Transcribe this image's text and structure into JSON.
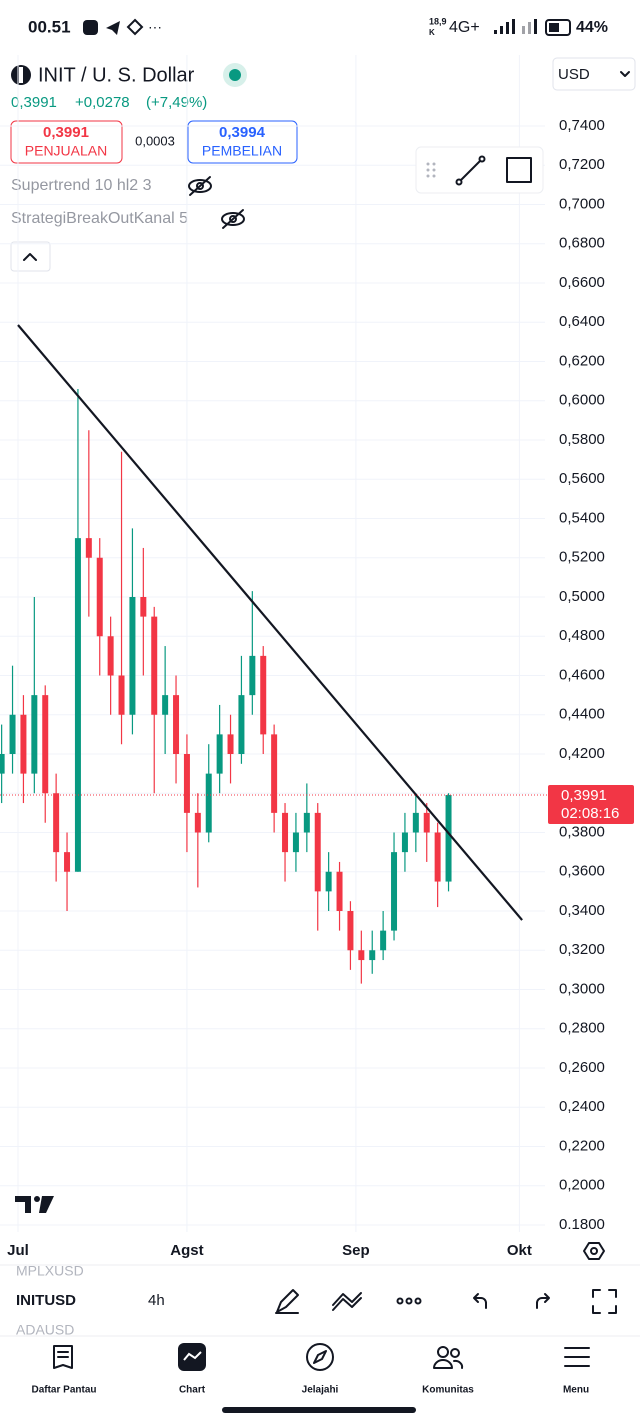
{
  "status_bar": {
    "time": "00.51",
    "speed": "18,9",
    "speed_unit": "K",
    "network": "4G+",
    "battery": "44%"
  },
  "header": {
    "symbol_title": "INIT / U. S. Dollar",
    "currency": "USD",
    "price": "0,3991",
    "change": "+0,0278",
    "change_pct": "(+7,49%)",
    "sell_price": "0,3991",
    "sell_label": "PENJUALAN",
    "spread": "0,0003",
    "buy_price": "0,3994",
    "buy_label": "PEMBELIAN",
    "indicators": [
      "Supertrend 10 hl2 3",
      "StrategiBreakOutKanal 5"
    ]
  },
  "chart_data": {
    "type": "candlestick",
    "x": [
      -3,
      -1,
      1,
      3,
      5,
      7,
      9,
      11,
      13,
      15,
      17,
      19,
      21,
      23,
      25,
      27,
      29,
      31,
      33,
      35,
      37,
      39,
      41,
      43,
      45,
      47,
      49,
      51,
      53,
      55,
      57,
      59,
      61,
      63,
      65,
      67,
      69,
      71,
      73,
      75,
      77,
      79
    ],
    "open": [
      0.41,
      0.42,
      0.44,
      0.41,
      0.45,
      0.4,
      0.37,
      0.36,
      0.53,
      0.52,
      0.48,
      0.46,
      0.44,
      0.5,
      0.49,
      0.44,
      0.45,
      0.42,
      0.39,
      0.38,
      0.41,
      0.43,
      0.42,
      0.45,
      0.47,
      0.43,
      0.39,
      0.37,
      0.38,
      0.39,
      0.35,
      0.36,
      0.34,
      0.32,
      0.315,
      0.32,
      0.33,
      0.37,
      0.38,
      0.39,
      0.38,
      0.355
    ],
    "high": [
      0.435,
      0.465,
      0.45,
      0.5,
      0.455,
      0.41,
      0.38,
      0.606,
      0.585,
      0.53,
      0.49,
      0.574,
      0.535,
      0.525,
      0.495,
      0.475,
      0.46,
      0.43,
      0.4,
      0.425,
      0.445,
      0.44,
      0.47,
      0.503,
      0.475,
      0.435,
      0.395,
      0.39,
      0.405,
      0.395,
      0.37,
      0.365,
      0.345,
      0.33,
      0.33,
      0.34,
      0.38,
      0.39,
      0.4,
      0.395,
      0.385,
      0.4
    ],
    "low": [
      0.395,
      0.41,
      0.395,
      0.4,
      0.385,
      0.355,
      0.34,
      0.36,
      0.49,
      0.46,
      0.44,
      0.425,
      0.43,
      0.46,
      0.4,
      0.42,
      0.405,
      0.37,
      0.352,
      0.375,
      0.4,
      0.405,
      0.415,
      0.44,
      0.42,
      0.38,
      0.355,
      0.36,
      0.37,
      0.33,
      0.34,
      0.33,
      0.31,
      0.303,
      0.308,
      0.315,
      0.325,
      0.36,
      0.37,
      0.365,
      0.342,
      0.35
    ],
    "close": [
      0.42,
      0.44,
      0.41,
      0.45,
      0.4,
      0.37,
      0.36,
      0.53,
      0.52,
      0.48,
      0.46,
      0.44,
      0.5,
      0.49,
      0.44,
      0.45,
      0.42,
      0.39,
      0.38,
      0.41,
      0.43,
      0.42,
      0.45,
      0.47,
      0.43,
      0.39,
      0.37,
      0.38,
      0.39,
      0.35,
      0.36,
      0.34,
      0.32,
      0.315,
      0.32,
      0.33,
      0.37,
      0.38,
      0.39,
      0.38,
      0.355,
      0.3991
    ],
    "up_color": "#089981",
    "down_color": "#f23645",
    "xlim": [
      -3.3,
      96.7
    ],
    "xticks": [
      {
        "value": 0,
        "label": "Jul"
      },
      {
        "value": 31,
        "label": "Agst"
      },
      {
        "value": 62,
        "label": "Sep"
      },
      {
        "value": 92,
        "label": "Okt"
      }
    ],
    "ylim": [
      0.18,
      0.74
    ],
    "yticks": [
      {
        "value": 0.74,
        "label": "0,7400"
      },
      {
        "value": 0.72,
        "label": "0,7200"
      },
      {
        "value": 0.7,
        "label": "0,7000"
      },
      {
        "value": 0.68,
        "label": "0,6800"
      },
      {
        "value": 0.66,
        "label": "0,6600"
      },
      {
        "value": 0.64,
        "label": "0,6400"
      },
      {
        "value": 0.62,
        "label": "0,6200"
      },
      {
        "value": 0.6,
        "label": "0,6000"
      },
      {
        "value": 0.58,
        "label": "0,5800"
      },
      {
        "value": 0.56,
        "label": "0,5600"
      },
      {
        "value": 0.54,
        "label": "0,5400"
      },
      {
        "value": 0.52,
        "label": "0,5200"
      },
      {
        "value": 0.5,
        "label": "0,5000"
      },
      {
        "value": 0.48,
        "label": "0,4800"
      },
      {
        "value": 0.46,
        "label": "0,4600"
      },
      {
        "value": 0.44,
        "label": "0,4400"
      },
      {
        "value": 0.42,
        "label": "0,4200"
      },
      {
        "value": 0.4,
        "label": "0,4000"
      },
      {
        "value": 0.38,
        "label": "0,3800"
      },
      {
        "value": 0.36,
        "label": "0,3600"
      },
      {
        "value": 0.34,
        "label": "0,3400"
      },
      {
        "value": 0.32,
        "label": "0,3200"
      },
      {
        "value": 0.3,
        "label": "0,3000"
      },
      {
        "value": 0.28,
        "label": "0,2800"
      },
      {
        "value": 0.26,
        "label": "0,2600"
      },
      {
        "value": 0.24,
        "label": "0,2400"
      },
      {
        "value": 0.22,
        "label": "0,2200"
      },
      {
        "value": 0.2,
        "label": "0,2000"
      },
      {
        "value": 0.18,
        "label": "0.1800"
      }
    ],
    "grid": true,
    "trendline": {
      "x": [
        0,
        92.5
      ],
      "y": [
        0.6386,
        0.3354
      ]
    },
    "last_price_label": "0,3991",
    "countdown": "02:08:16"
  },
  "toolbar": {
    "prev_symbol": "MPLXUSD",
    "symbol": "INITUSD",
    "interval": "4h",
    "next_symbol": "ADAUSD"
  },
  "nav": [
    "Daftar Pantau",
    "Chart",
    "Jelajahi",
    "Komunitas",
    "Menu"
  ]
}
